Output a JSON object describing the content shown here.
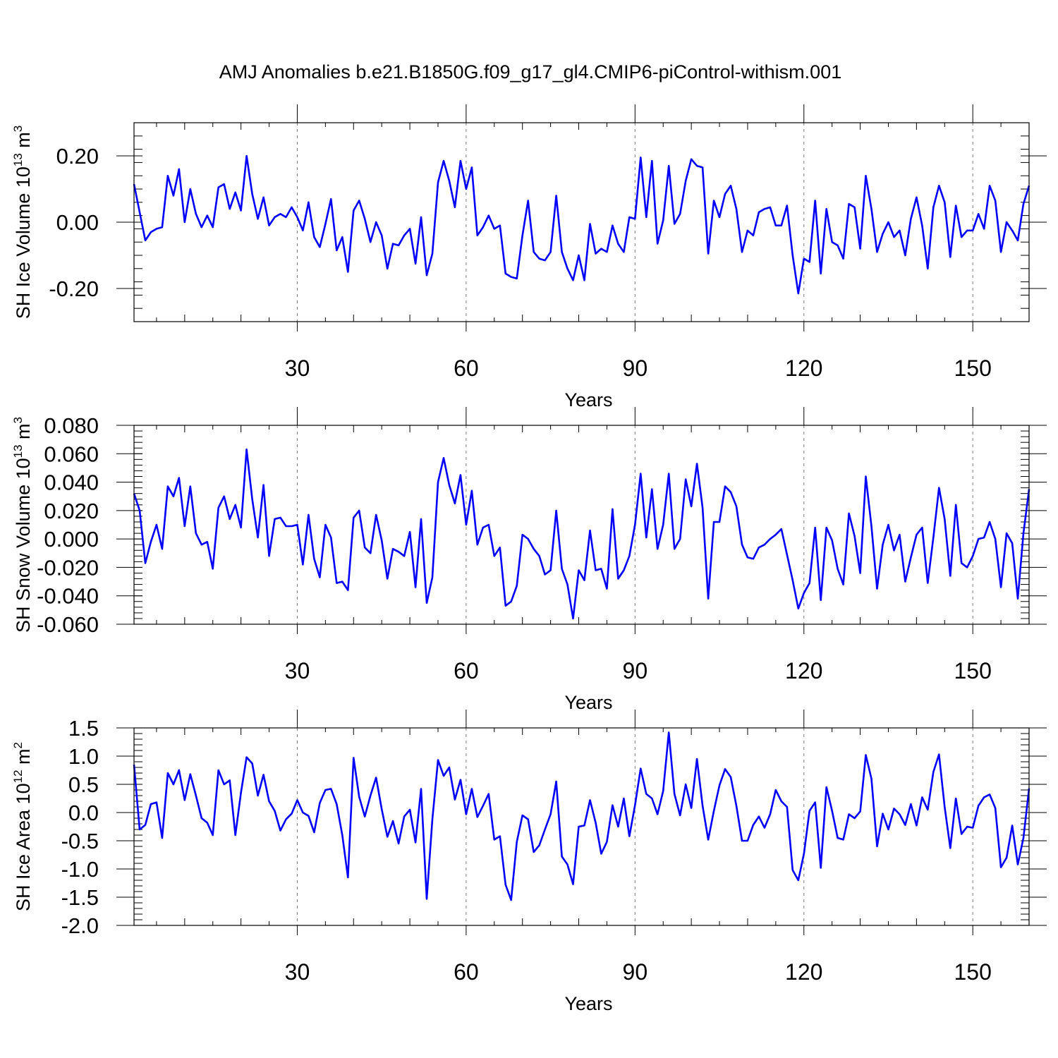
{
  "figure": {
    "title": "AMJ Anomalies b.e21.B1850G.f09_g17_gl4.CMIP6-piControl-withism.001",
    "line_color": "#0000ff"
  },
  "chart_data": [
    {
      "type": "line",
      "name": "ice-volume",
      "ylabel_main": "SH Ice Volume 10",
      "ylabel_exp": "13",
      "ylabel_unit": " m",
      "ylabel_unit_exp": "3",
      "xlabel": "Years",
      "xlim": [
        1,
        160
      ],
      "ylim": [
        -0.3,
        0.3
      ],
      "xticks": [
        30,
        60,
        90,
        120,
        150
      ],
      "xtick_labels": [
        "30",
        "60",
        "90",
        "120",
        "150"
      ],
      "yticks": [
        -0.2,
        0.0,
        0.2
      ],
      "ytick_labels": [
        "-0.20",
        "0.00",
        "0.20"
      ],
      "gridlines_x": [
        30,
        60,
        90,
        120,
        150
      ],
      "x_start": 1,
      "values": [
        0.115,
        0.03,
        -0.055,
        -0.03,
        -0.02,
        -0.015,
        0.14,
        0.08,
        0.16,
        0.0,
        0.1,
        0.025,
        -0.015,
        0.02,
        -0.015,
        0.105,
        0.115,
        0.04,
        0.09,
        0.035,
        0.2,
        0.085,
        0.01,
        0.075,
        -0.01,
        0.015,
        0.025,
        0.015,
        0.045,
        0.015,
        -0.025,
        0.06,
        -0.045,
        -0.075,
        -0.005,
        0.07,
        -0.085,
        -0.045,
        -0.15,
        0.035,
        0.065,
        0.01,
        -0.06,
        0.0,
        -0.04,
        -0.14,
        -0.065,
        -0.07,
        -0.04,
        -0.02,
        -0.125,
        0.015,
        -0.16,
        -0.095,
        0.12,
        0.185,
        0.125,
        0.045,
        0.185,
        0.1,
        0.165,
        -0.04,
        -0.015,
        0.02,
        -0.02,
        -0.01,
        -0.155,
        -0.165,
        -0.17,
        -0.04,
        0.065,
        -0.09,
        -0.11,
        -0.115,
        -0.09,
        0.08,
        -0.09,
        -0.14,
        -0.175,
        -0.1,
        -0.175,
        -0.005,
        -0.095,
        -0.08,
        -0.09,
        -0.01,
        -0.065,
        -0.09,
        0.015,
        0.01,
        0.195,
        0.015,
        0.185,
        -0.065,
        0.005,
        0.17,
        -0.005,
        0.025,
        0.125,
        0.19,
        0.17,
        0.165,
        -0.095,
        0.065,
        0.015,
        0.085,
        0.11,
        0.04,
        -0.09,
        -0.025,
        -0.04,
        0.03,
        0.04,
        0.045,
        -0.01,
        -0.01,
        0.05,
        -0.1,
        -0.215,
        -0.11,
        -0.12,
        0.065,
        -0.155,
        0.04,
        -0.06,
        -0.07,
        -0.11,
        0.055,
        0.045,
        -0.08,
        0.14,
        0.04,
        -0.09,
        -0.035,
        0.0,
        -0.045,
        -0.025,
        -0.1,
        0.01,
        0.075,
        -0.01,
        -0.14,
        0.045,
        0.11,
        0.06,
        -0.105,
        0.05,
        -0.045,
        -0.025,
        -0.025,
        0.025,
        -0.02,
        0.11,
        0.065,
        -0.09,
        0.0,
        -0.025,
        -0.055,
        0.055,
        0.11
      ]
    },
    {
      "type": "line",
      "name": "snow-volume",
      "ylabel_main": "SH Snow Volume 10",
      "ylabel_exp": "13",
      "ylabel_unit": " m",
      "ylabel_unit_exp": "3",
      "xlabel": "Years",
      "xlim": [
        1,
        160
      ],
      "ylim": [
        -0.06,
        0.08
      ],
      "xticks": [
        30,
        60,
        90,
        120,
        150
      ],
      "xtick_labels": [
        "30",
        "60",
        "90",
        "120",
        "150"
      ],
      "yticks": [
        -0.06,
        -0.04,
        -0.02,
        0.0,
        0.02,
        0.04,
        0.06,
        0.08
      ],
      "ytick_labels": [
        "-0.060",
        "-0.040",
        "-0.020",
        "0.000",
        "0.020",
        "0.040",
        "0.060",
        "0.080"
      ],
      "gridlines_x": [
        30,
        60,
        90,
        120,
        150
      ],
      "x_start": 1,
      "values": [
        0.032,
        0.02,
        -0.017,
        -0.002,
        0.01,
        -0.007,
        0.037,
        0.03,
        0.043,
        0.009,
        0.037,
        0.004,
        -0.004,
        -0.002,
        -0.021,
        0.022,
        0.03,
        0.014,
        0.024,
        0.008,
        0.063,
        0.028,
        0.001,
        0.038,
        -0.012,
        0.014,
        0.015,
        0.009,
        0.009,
        0.01,
        -0.018,
        0.017,
        -0.014,
        -0.027,
        0.01,
        0.001,
        -0.031,
        -0.03,
        -0.036,
        0.015,
        0.02,
        -0.006,
        -0.01,
        0.017,
        -0.001,
        -0.028,
        -0.007,
        -0.009,
        -0.012,
        0.005,
        -0.034,
        0.014,
        -0.045,
        -0.027,
        0.04,
        0.057,
        0.038,
        0.025,
        0.045,
        0.01,
        0.034,
        -0.004,
        0.008,
        0.01,
        -0.012,
        -0.006,
        -0.047,
        -0.044,
        -0.033,
        0.003,
        0.0,
        -0.007,
        -0.012,
        -0.025,
        -0.022,
        0.02,
        -0.021,
        -0.032,
        -0.056,
        -0.022,
        -0.029,
        0.006,
        -0.022,
        -0.021,
        -0.035,
        0.021,
        -0.028,
        -0.022,
        -0.012,
        0.01,
        0.046,
        0.001,
        0.035,
        -0.007,
        0.01,
        0.046,
        -0.007,
        -0.0,
        0.042,
        0.023,
        0.053,
        0.022,
        -0.042,
        0.012,
        0.012,
        0.037,
        0.033,
        0.023,
        -0.004,
        -0.013,
        -0.014,
        -0.006,
        -0.004,
        0.0,
        0.003,
        0.007,
        -0.011,
        -0.029,
        -0.049,
        -0.038,
        -0.031,
        0.008,
        -0.043,
        0.008,
        -0.001,
        -0.021,
        -0.032,
        0.018,
        0.002,
        -0.024,
        0.044,
        0.009,
        -0.035,
        -0.004,
        0.01,
        -0.008,
        0.003,
        -0.03,
        -0.013,
        0.003,
        0.008,
        -0.031,
        0.001,
        0.036,
        0.014,
        -0.026,
        0.024,
        -0.017,
        -0.02,
        -0.012,
        0.0,
        0.001,
        0.012,
        0.0,
        -0.034,
        0.004,
        -0.003,
        -0.042,
        0.004,
        0.035
      ]
    },
    {
      "type": "line",
      "name": "ice-area",
      "ylabel_main": "SH Ice Area 10",
      "ylabel_exp": "12",
      "ylabel_unit": " m",
      "ylabel_unit_exp": "2",
      "xlabel": "Years",
      "xlim": [
        1,
        160
      ],
      "ylim": [
        -2.0,
        1.5
      ],
      "xticks": [
        30,
        60,
        90,
        120,
        150
      ],
      "xtick_labels": [
        "30",
        "60",
        "90",
        "120",
        "150"
      ],
      "yticks": [
        -2.0,
        -1.5,
        -1.0,
        -0.5,
        0.0,
        0.5,
        1.0,
        1.5
      ],
      "ytick_labels": [
        "-2.0",
        "-1.5",
        "-1.0",
        "-0.5",
        "0.0",
        "0.5",
        "1.0",
        "1.5"
      ],
      "gridlines_x": [
        30,
        60,
        90,
        120,
        150
      ],
      "x_start": 1,
      "values": [
        0.85,
        -0.3,
        -0.22,
        0.15,
        0.18,
        -0.45,
        0.7,
        0.5,
        0.75,
        0.22,
        0.68,
        0.3,
        -0.1,
        -0.18,
        -0.4,
        0.75,
        0.5,
        0.57,
        -0.4,
        0.35,
        0.98,
        0.87,
        0.3,
        0.67,
        0.2,
        0.03,
        -0.32,
        -0.12,
        -0.02,
        0.22,
        0.0,
        -0.06,
        -0.35,
        0.17,
        0.4,
        0.42,
        0.15,
        -0.4,
        -1.15,
        0.97,
        0.28,
        -0.07,
        0.3,
        0.62,
        0.06,
        -0.43,
        -0.15,
        -0.55,
        -0.07,
        0.05,
        -0.53,
        0.42,
        -1.53,
        -0.12,
        0.93,
        0.65,
        0.8,
        0.23,
        0.58,
        -0.03,
        0.42,
        -0.08,
        0.12,
        0.33,
        -0.48,
        -0.42,
        -1.28,
        -1.55,
        -0.52,
        -0.05,
        -0.12,
        -0.7,
        -0.58,
        -0.3,
        -0.03,
        0.55,
        -0.78,
        -0.92,
        -1.27,
        -0.25,
        -0.23,
        0.22,
        -0.18,
        -0.73,
        -0.52,
        0.13,
        -0.25,
        0.25,
        -0.42,
        0.13,
        0.78,
        0.33,
        0.25,
        -0.03,
        0.38,
        1.42,
        0.33,
        -0.05,
        0.5,
        0.08,
        0.95,
        0.12,
        -0.48,
        0.03,
        0.48,
        0.77,
        0.63,
        0.12,
        -0.5,
        -0.5,
        -0.22,
        -0.07,
        -0.27,
        -0.03,
        0.4,
        0.2,
        0.1,
        -1.02,
        -1.2,
        -0.73,
        0.03,
        0.18,
        -0.98,
        0.45,
        0.03,
        -0.45,
        -0.48,
        -0.03,
        -0.1,
        0.02,
        1.02,
        0.6,
        -0.6,
        -0.02,
        -0.3,
        0.07,
        -0.03,
        -0.22,
        0.15,
        -0.23,
        0.27,
        0.05,
        0.72,
        1.03,
        0.1,
        -0.63,
        0.25,
        -0.38,
        -0.25,
        -0.27,
        0.12,
        0.27,
        0.32,
        0.08,
        -0.97,
        -0.8,
        -0.23,
        -0.92,
        -0.45,
        0.43
      ]
    }
  ]
}
